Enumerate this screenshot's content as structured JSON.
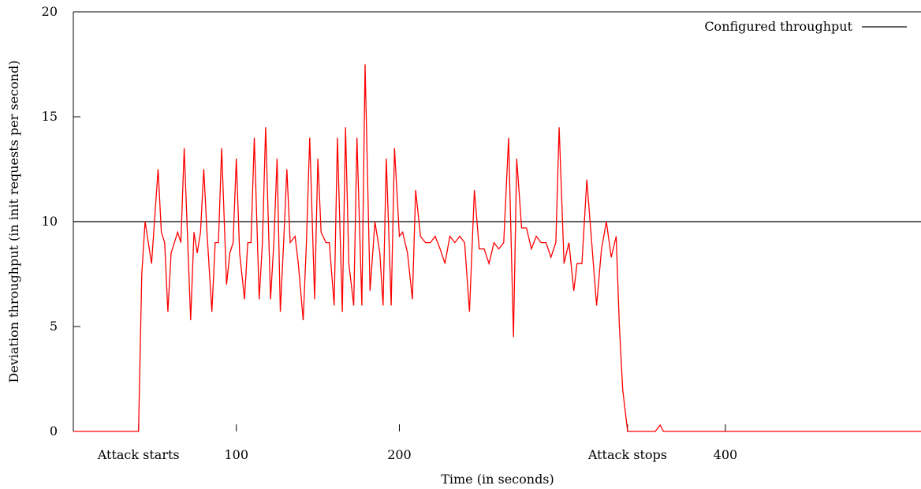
{
  "chart_data": {
    "type": "line",
    "xlabel": "Time (in seconds)",
    "ylabel": "Deviation throughput (in init requests per second)",
    "xlim": [
      0,
      520
    ],
    "ylim": [
      0,
      20
    ],
    "grid": false,
    "legend_position": "top-right",
    "x_ticks": [
      {
        "value": 40,
        "label": "Attack starts"
      },
      {
        "value": 100,
        "label": "100"
      },
      {
        "value": 200,
        "label": "200"
      },
      {
        "value": 340,
        "label": "Attack stops"
      },
      {
        "value": 400,
        "label": "400"
      }
    ],
    "y_ticks": [
      {
        "value": 0,
        "label": "0"
      },
      {
        "value": 5,
        "label": "5"
      },
      {
        "value": 10,
        "label": "10"
      },
      {
        "value": 15,
        "label": "15"
      },
      {
        "value": 20,
        "label": "20"
      }
    ],
    "series": [
      {
        "name": "Configured throughput",
        "kind": "hline",
        "color": "#000000",
        "y": 10
      },
      {
        "kind": "line",
        "color": "#ff0000",
        "points": [
          [
            0,
            0
          ],
          [
            40,
            0
          ],
          [
            42,
            7.5
          ],
          [
            44,
            10
          ],
          [
            48,
            8
          ],
          [
            52,
            12.5
          ],
          [
            54,
            9.5
          ],
          [
            56,
            9
          ],
          [
            58,
            5.7
          ],
          [
            60,
            8.5
          ],
          [
            64,
            9.5
          ],
          [
            66,
            9
          ],
          [
            68,
            13.5
          ],
          [
            72,
            5.3
          ],
          [
            74,
            9.5
          ],
          [
            76,
            8.5
          ],
          [
            78,
            9.5
          ],
          [
            80,
            12.5
          ],
          [
            82,
            9.5
          ],
          [
            85,
            5.7
          ],
          [
            87,
            9
          ],
          [
            89,
            9
          ],
          [
            91,
            13.5
          ],
          [
            94,
            7
          ],
          [
            96,
            8.5
          ],
          [
            98,
            9
          ],
          [
            100,
            13
          ],
          [
            102,
            8.5
          ],
          [
            105,
            6.3
          ],
          [
            107,
            9
          ],
          [
            109,
            9
          ],
          [
            111,
            14
          ],
          [
            114,
            6.3
          ],
          [
            116,
            9
          ],
          [
            118,
            14.5
          ],
          [
            121,
            6.3
          ],
          [
            123,
            9
          ],
          [
            125,
            13
          ],
          [
            127,
            5.7
          ],
          [
            129,
            9
          ],
          [
            131,
            12.5
          ],
          [
            133,
            9
          ],
          [
            136,
            9.3
          ],
          [
            138,
            8
          ],
          [
            141,
            5.3
          ],
          [
            143,
            9
          ],
          [
            145,
            14
          ],
          [
            148,
            6.3
          ],
          [
            150,
            13
          ],
          [
            152,
            9.5
          ],
          [
            155,
            9
          ],
          [
            157,
            9
          ],
          [
            160,
            6
          ],
          [
            162,
            14
          ],
          [
            165,
            5.7
          ],
          [
            167,
            14.5
          ],
          [
            169,
            8
          ],
          [
            172,
            6
          ],
          [
            174,
            14
          ],
          [
            177,
            6
          ],
          [
            179,
            17.5
          ],
          [
            182,
            6.7
          ],
          [
            185,
            10
          ],
          [
            188,
            8.5
          ],
          [
            190,
            6
          ],
          [
            192,
            13
          ],
          [
            195,
            6
          ],
          [
            197,
            13.5
          ],
          [
            200,
            9.3
          ],
          [
            202,
            9.5
          ],
          [
            205,
            8.5
          ],
          [
            208,
            6.3
          ],
          [
            210,
            11.5
          ],
          [
            213,
            9.3
          ],
          [
            216,
            9
          ],
          [
            219,
            9
          ],
          [
            222,
            9.3
          ],
          [
            225,
            8.7
          ],
          [
            228,
            8
          ],
          [
            231,
            9.3
          ],
          [
            234,
            9
          ],
          [
            237,
            9.3
          ],
          [
            240,
            9
          ],
          [
            243,
            5.7
          ],
          [
            246,
            11.5
          ],
          [
            249,
            8.7
          ],
          [
            252,
            8.7
          ],
          [
            255,
            8
          ],
          [
            258,
            9
          ],
          [
            261,
            8.7
          ],
          [
            264,
            9
          ],
          [
            267,
            14
          ],
          [
            270,
            4.5
          ],
          [
            272,
            13
          ],
          [
            275,
            9.7
          ],
          [
            278,
            9.7
          ],
          [
            281,
            8.7
          ],
          [
            284,
            9.3
          ],
          [
            287,
            9
          ],
          [
            290,
            9
          ],
          [
            293,
            8.3
          ],
          [
            296,
            9
          ],
          [
            298,
            14.5
          ],
          [
            301,
            8
          ],
          [
            304,
            9
          ],
          [
            307,
            6.7
          ],
          [
            309,
            8
          ],
          [
            312,
            8
          ],
          [
            315,
            12
          ],
          [
            318,
            9
          ],
          [
            321,
            6
          ],
          [
            324,
            8.7
          ],
          [
            327,
            10
          ],
          [
            330,
            8.3
          ],
          [
            333,
            9.3
          ],
          [
            335,
            5
          ],
          [
            337,
            2
          ],
          [
            340,
            0
          ],
          [
            357,
            0
          ],
          [
            360,
            0.3
          ],
          [
            362,
            0
          ],
          [
            520,
            0
          ]
        ]
      }
    ]
  }
}
